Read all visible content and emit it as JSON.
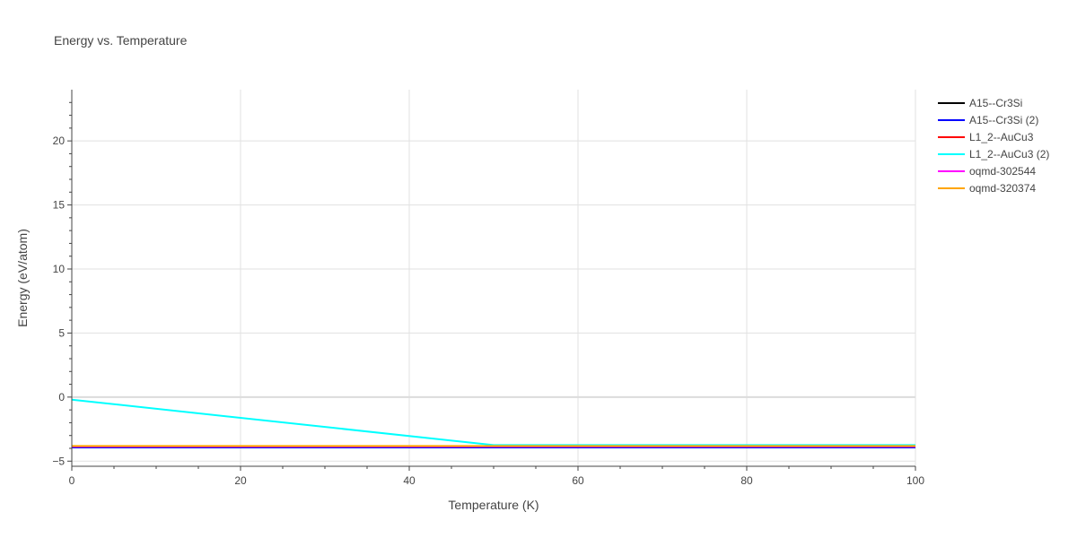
{
  "chart_data": {
    "type": "line",
    "title": "Energy vs. Temperature",
    "xlabel": "Temperature (K)",
    "ylabel": "Energy (eV/atom)",
    "xlim": [
      0,
      100
    ],
    "ylim": [
      -5.4,
      24
    ],
    "x_ticks": [
      0,
      20,
      40,
      60,
      80,
      100
    ],
    "y_ticks": [
      -5,
      0,
      5,
      10,
      15,
      20
    ],
    "grid": true,
    "legend_position": "right",
    "series": [
      {
        "name": "A15--Cr3Si",
        "color": "#000000",
        "x": [
          0,
          100
        ],
        "y": [
          -3.93,
          -3.93
        ]
      },
      {
        "name": "A15--Cr3Si (2)",
        "color": "#0000ff",
        "x": [
          0,
          100
        ],
        "y": [
          -3.93,
          -3.93
        ]
      },
      {
        "name": "L1_2--AuCu3",
        "color": "#ff0000",
        "x": [
          0,
          100
        ],
        "y": [
          -3.85,
          -3.85
        ]
      },
      {
        "name": "L1_2--AuCu3 (2)",
        "color": "#00ffff",
        "x": [
          0,
          50,
          100
        ],
        "y": [
          -0.2,
          -3.75,
          -3.75
        ]
      },
      {
        "name": "oqmd-302544",
        "color": "#ff00ff",
        "x": [
          0,
          100
        ],
        "y": [
          -3.85,
          -3.85
        ]
      },
      {
        "name": "oqmd-320374",
        "color": "#ffa500",
        "x": [
          0,
          100
        ],
        "y": [
          -3.82,
          -3.82
        ]
      }
    ]
  }
}
